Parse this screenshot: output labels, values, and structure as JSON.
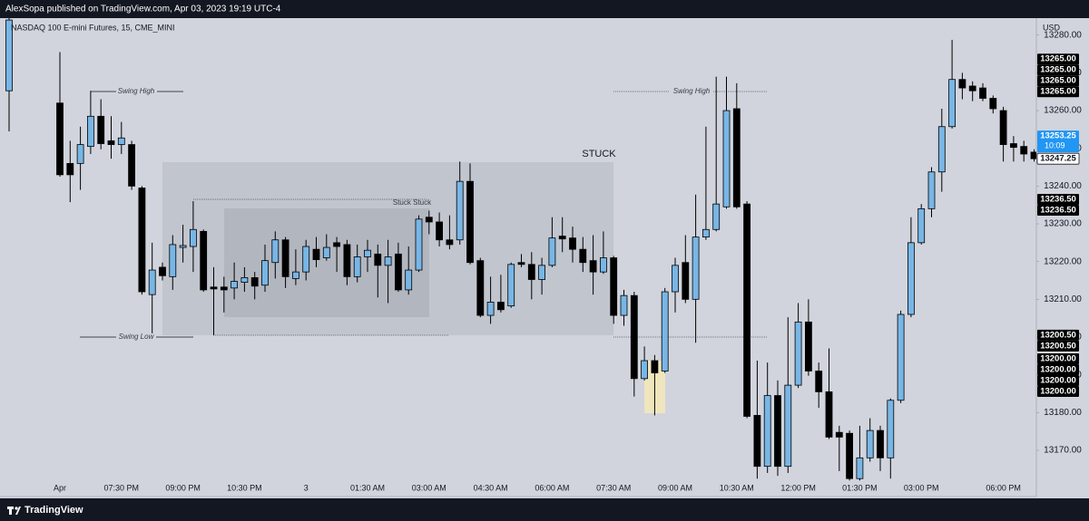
{
  "header": {
    "publisher": "AlexSopa published on TradingView.com, Apr 03, 2023 19:19 UTC-4",
    "footer": "TradingView"
  },
  "chart_data": {
    "type": "candlestick",
    "title": "NASDAQ 100 E-mini Futures, 15, CME_MINI",
    "currency": "USD",
    "up_color": "#78b6e6",
    "down_color": "#000000",
    "categories": [
      null,
      "Apr",
      null,
      null,
      null,
      null,
      null,
      "07:30 PM",
      null,
      null,
      null,
      null,
      null,
      "09:00 PM",
      null,
      null,
      null,
      null,
      null,
      "10:30 PM",
      null,
      null,
      null,
      null,
      null,
      "3",
      null,
      null,
      null,
      null,
      null,
      "01:30 AM",
      null,
      null,
      null,
      null,
      null,
      "03:00 AM",
      null,
      null,
      null,
      null,
      null,
      "04:30 AM",
      null,
      null,
      null,
      null,
      null,
      "06:00 AM",
      null,
      null,
      null,
      null,
      null,
      "07:30 AM",
      null,
      null,
      null,
      null,
      null,
      "09:00 AM",
      null,
      null,
      null,
      null,
      null,
      "10:30 AM",
      null,
      null,
      null,
      null,
      null,
      "12:00 PM",
      null,
      null,
      null,
      null,
      null,
      "01:30 PM",
      null,
      null,
      null,
      null,
      null,
      "03:00 PM",
      null,
      null,
      null,
      null,
      null,
      null,
      null,
      "06:00 PM",
      null,
      null,
      null
    ],
    "open": [
      13265.25,
      13262,
      13246,
      13246,
      13250.5,
      13258.5,
      13252,
      13251,
      13251,
      13239.5,
      13211.25,
      13218.5,
      13216,
      13223.75,
      13224,
      13228,
      13213.25,
      13213.25,
      13213,
      13214.5,
      13215.75,
      13213.75,
      13219.75,
      13225.75,
      13215.5,
      13217.25,
      13223.25,
      13221,
      13225,
      13224.5,
      13216,
      13221.25,
      13222,
      13219,
      13222,
      13212.5,
      13217.75,
      13231.75,
      13230.5,
      13225.75,
      13225.75,
      13241.25,
      13220.25,
      13205.75,
      13209.25,
      13208.25,
      13219.75,
      13219.25,
      13215.25,
      13219,
      13226.75,
      13226.25,
      13223.25,
      13220.25,
      13217.25,
      13221,
      13205.75,
      13211,
      13189,
      13193.75,
      13191,
      13212,
      13219.75,
      13210,
      13226.5,
      13228.5,
      13234.5,
      13260.5,
      13235.25,
      13179.25,
      13165.75,
      13184.5,
      13165.75,
      13187.25,
      13204,
      13191,
      13185.5,
      13174.75,
      13174.5,
      13162.5,
      13168,
      13175.25,
      13168,
      13183.25,
      13206,
      13225,
      13234,
      13243.75,
      13255.75,
      13268.25,
      13266.5,
      13266,
      13263.25,
      13260,
      13251.25,
      13250.5,
      13249
    ],
    "high": [
      13290,
      13275.5,
      13252,
      13255.75,
      13265.25,
      13263,
      13258.5,
      13257,
      13252,
      13240,
      13225,
      13219.75,
      13227,
      13229.75,
      13236,
      13228.5,
      13218.5,
      13216,
      13219.75,
      13218.5,
      13217.25,
      13224.5,
      13228,
      13226.5,
      13223.25,
      13225.75,
      13226.5,
      13227.25,
      13226.5,
      13225.75,
      13224.5,
      13225.75,
      13224.5,
      13225.75,
      13225,
      13224,
      13232.25,
      13233.5,
      13233,
      13232.25,
      13246.5,
      13246,
      13221,
      13216,
      13216.5,
      13219.75,
      13222,
      13222.5,
      13221,
      13231.75,
      13231.75,
      13229.25,
      13226.5,
      13227,
      13228,
      13221.5,
      13212.5,
      13212,
      13197.5,
      13195.25,
      13213,
      13221,
      13227,
      13237.75,
      13255.75,
      13269,
      13269,
      13267.25,
      13236,
      13193.75,
      13193.25,
      13188.5,
      13205.25,
      13209,
      13210,
      13193.25,
      13197,
      13176.5,
      13175.25,
      13176.5,
      13178.5,
      13176.5,
      13183.75,
      13207,
      13231.75,
      13235.25,
      13245,
      13260.5,
      13278.75,
      13270,
      13267.75,
      13267.25,
      13264,
      13261,
      13253.25,
      13252,
      13249.75
    ],
    "low": [
      13254.5,
      13242.5,
      13235.75,
      13239,
      13248.5,
      13249.75,
      13247.25,
      13248.5,
      13239,
      13211.25,
      13201,
      13215,
      13212.5,
      13219.75,
      13217.25,
      13212,
      13200.5,
      13206.5,
      13210,
      13212,
      13210,
      13212,
      13215.5,
      13213,
      13213.75,
      13215,
      13218.5,
      13220.25,
      13217.25,
      13213.75,
      13214.5,
      13217.25,
      13210.5,
      13209,
      13212,
      13211.25,
      13217.25,
      13227.25,
      13224,
      13223.25,
      13224.5,
      13219.25,
      13205.25,
      13203.5,
      13206.5,
      13207.75,
      13218.5,
      13210,
      13211.25,
      13218.5,
      13222.5,
      13219.75,
      13217.25,
      13211.25,
      13216.75,
      13203.5,
      13203,
      13184.25,
      13188.5,
      13179.25,
      13190.5,
      13206.5,
      13209,
      13198.5,
      13225.75,
      13228,
      13234,
      13234,
      13178.5,
      13162.5,
      13164,
      13163.25,
      13164,
      13186.5,
      13189.75,
      13181.25,
      13173,
      13164.5,
      13162,
      13162,
      13167,
      13164.5,
      13162.5,
      13182.5,
      13205.25,
      13224.5,
      13231.75,
      13238.5,
      13255.25,
      13263,
      13262.5,
      13262.5,
      13259.25,
      13246.5,
      13246.5,
      13246.5,
      13246.5
    ],
    "close": [
      13284,
      13243,
      13243,
      13251,
      13258.5,
      13251.25,
      13251,
      13252.75,
      13240,
      13212,
      13217.75,
      13216.25,
      13224.5,
      13224.25,
      13228.5,
      13212.5,
      13212.75,
      13212.5,
      13214.75,
      13215.75,
      13213.5,
      13220.25,
      13225.75,
      13216,
      13217.25,
      13224,
      13220.5,
      13223.75,
      13224,
      13216,
      13221.25,
      13223,
      13219,
      13221.25,
      13212.5,
      13217.75,
      13231.25,
      13230.5,
      13225.75,
      13224.5,
      13241.25,
      13219.75,
      13205.75,
      13209.25,
      13207.25,
      13219.25,
      13219.25,
      13215.25,
      13219,
      13226.25,
      13226,
      13223.25,
      13219.75,
      13217.25,
      13221,
      13205.75,
      13211,
      13189,
      13193.75,
      13190.5,
      13212,
      13219,
      13210,
      13226.5,
      13228.5,
      13235.25,
      13260,
      13234.5,
      13179,
      13165.75,
      13184.5,
      13165.75,
      13187.25,
      13204,
      13191,
      13185.5,
      13173.5,
      13173.5,
      13162.5,
      13168,
      13175.25,
      13168,
      13183.25,
      13206,
      13225,
      13234,
      13243.75,
      13255.75,
      13268.25,
      13266,
      13265.25,
      13263.25,
      13260.5,
      13251,
      13250.25,
      13248.5,
      13247.25
    ],
    "ylim": [
      13157.75,
      13284.5
    ],
    "yticks": [
      {
        "value": 13170,
        "label": "13170.00"
      },
      {
        "value": 13180,
        "label": "13180.00"
      },
      {
        "value": 13190,
        "label": "13190.00"
      },
      {
        "value": 13200,
        "label": "13200.00"
      },
      {
        "value": 13210,
        "label": "13210.00"
      },
      {
        "value": 13220,
        "label": "13220.00"
      },
      {
        "value": 13230,
        "label": "13230.00"
      },
      {
        "value": 13240,
        "label": "13240.00"
      },
      {
        "value": 13250,
        "label": "13250.00"
      },
      {
        "value": 13260,
        "label": "13260.00"
      },
      {
        "value": 13270,
        "label": "13270.00"
      },
      {
        "value": 13280,
        "label": "13280.00"
      }
    ],
    "grid": false,
    "price_labels": [
      {
        "value": 13265,
        "label": "13265.00"
      },
      {
        "value": 13265,
        "label": "13265.00"
      },
      {
        "value": 13265,
        "label": "13265.00"
      },
      {
        "value": 13265,
        "label": "13265.00"
      },
      {
        "value": 13253.25,
        "label": "13253.25"
      },
      {
        "value": 13247.25,
        "label": "13247.25"
      },
      {
        "value": 13236.5,
        "label": "13236.50"
      },
      {
        "value": 13236.5,
        "label": "13236.50"
      },
      {
        "value": 13200.5,
        "label": "13200.50"
      },
      {
        "value": 13200.5,
        "label": "13200.50"
      },
      {
        "value": 13200,
        "label": "13200.00"
      },
      {
        "value": 13200,
        "label": "13200.00"
      },
      {
        "value": 13200,
        "label": "13200.00"
      },
      {
        "value": 13200,
        "label": "13200.00"
      }
    ],
    "countdown": "10:09",
    "annotations": [
      "Swing High",
      "Swing Low",
      "Stuck Stuck",
      "Swing High",
      "STUCK"
    ]
  }
}
